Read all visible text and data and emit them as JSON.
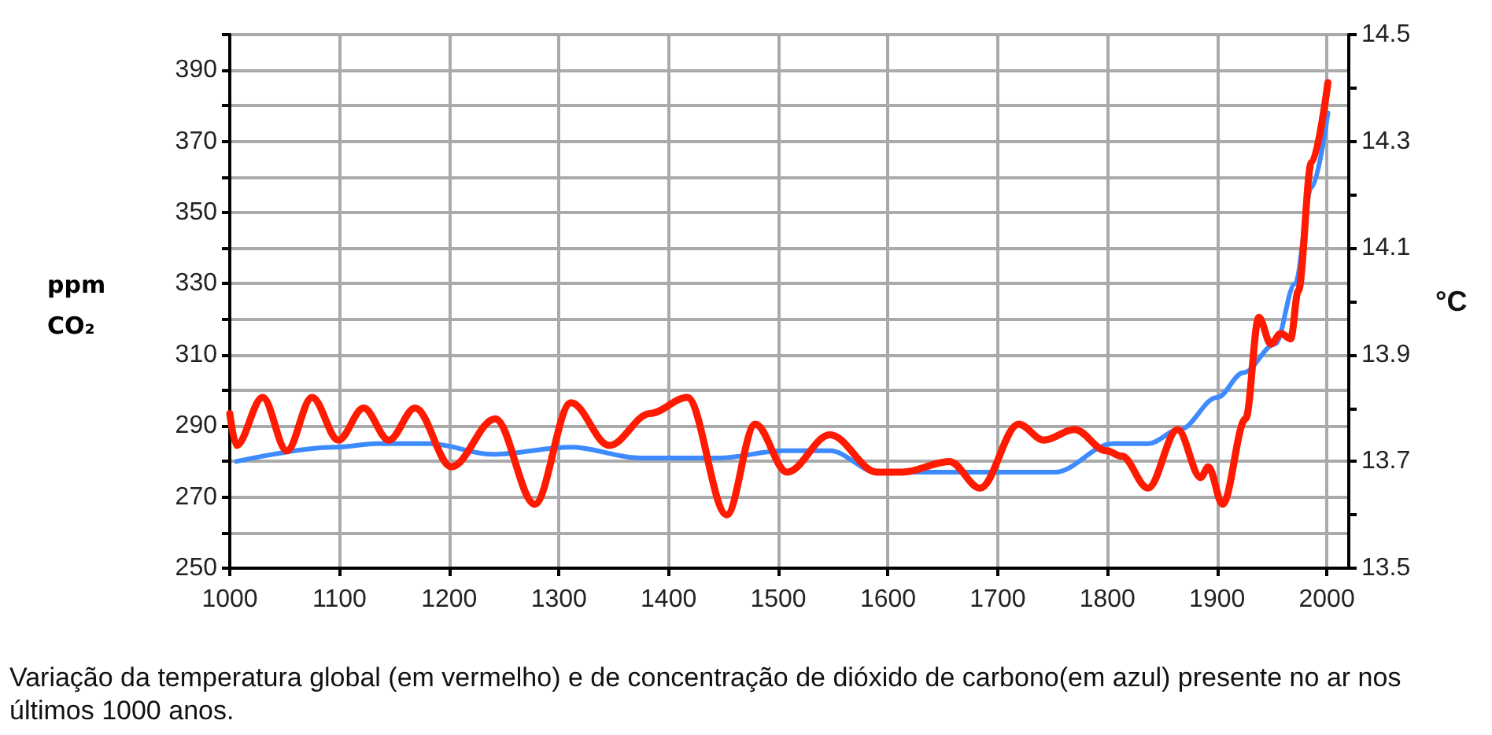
{
  "chart_data": {
    "type": "line",
    "ylabel": "ppm CO₂",
    "y2label": "°C",
    "xlim": [
      1000,
      2020
    ],
    "xticks": [
      1000,
      1100,
      1200,
      1300,
      1400,
      1500,
      1600,
      1700,
      1800,
      1900,
      2000
    ],
    "ylim": [
      250,
      400
    ],
    "yticks": [
      250,
      {
        "value": 260,
        "label": null
      },
      270,
      {
        "value": 280,
        "label": null
      },
      290,
      {
        "value": 300,
        "label": null
      },
      310,
      {
        "value": 320,
        "label": null
      },
      330,
      {
        "value": 340,
        "label": null
      },
      350,
      {
        "value": 360,
        "label": null
      },
      370,
      {
        "value": 380,
        "label": null
      },
      390,
      {
        "value": 400,
        "label": null
      }
    ],
    "y2lim": [
      13.5,
      14.5
    ],
    "y2ticks": [
      {
        "value": 13.5,
        "label": "13.5"
      },
      {
        "value": 13.6,
        "label": null
      },
      {
        "value": 13.7,
        "label": "13.7"
      },
      {
        "value": 13.8,
        "label": null
      },
      {
        "value": 13.9,
        "label": "13.9"
      },
      {
        "value": 14.0,
        "label": null
      },
      {
        "value": 14.1,
        "label": "14.1"
      },
      {
        "value": 14.2,
        "label": null
      },
      {
        "value": 14.3,
        "label": "14.3"
      },
      {
        "value": 14.4,
        "label": null
      },
      {
        "value": 14.5,
        "label": "14.5"
      }
    ],
    "grid": true,
    "marker": "none",
    "line_style": "solid",
    "series": [
      {
        "color": "#3d8bff",
        "x": [
          1006,
          1096,
          1135,
          1182,
          1240,
          1311,
          1374,
          1446,
          1505,
          1547,
          1590,
          1752,
          1805,
          1837,
          1866,
          1900,
          1924,
          1953,
          1971,
          1986,
          2001
        ],
        "values": [
          280,
          284,
          285,
          285,
          282,
          284,
          281,
          281,
          283,
          283,
          277,
          277,
          285,
          285,
          289,
          298,
          305,
          313,
          330,
          357,
          378
        ]
      },
      {
        "color": "#ff1a00",
        "axis": "y2",
        "x": [
          1000,
          1006,
          1030,
          1052,
          1075,
          1099,
          1122,
          1145,
          1169,
          1202,
          1242,
          1278,
          1311,
          1346,
          1383,
          1417,
          1453,
          1479,
          1508,
          1547,
          1590,
          1613,
          1656,
          1684,
          1719,
          1742,
          1770,
          1799,
          1813,
          1837,
          1864,
          1885,
          1892,
          1905,
          1926,
          1938,
          1949,
          1958,
          1967,
          1974,
          1986,
          2001
        ],
        "values": [
          13.79,
          13.73,
          13.82,
          13.72,
          13.82,
          13.74,
          13.8,
          13.74,
          13.8,
          13.69,
          13.78,
          13.62,
          13.81,
          13.73,
          13.79,
          13.82,
          13.6,
          13.77,
          13.68,
          13.75,
          13.68,
          13.68,
          13.7,
          13.65,
          13.77,
          13.74,
          13.76,
          13.72,
          13.71,
          13.65,
          13.76,
          13.67,
          13.69,
          13.62,
          13.78,
          13.97,
          13.92,
          13.94,
          13.93,
          14.02,
          14.26,
          14.41
        ]
      }
    ],
    "annotations": [
      "Variação da temperatura global (em vermelho) e de concentração de dióxido de carbono(em azul) presente no ar nos últimos 1000 anos."
    ]
  }
}
